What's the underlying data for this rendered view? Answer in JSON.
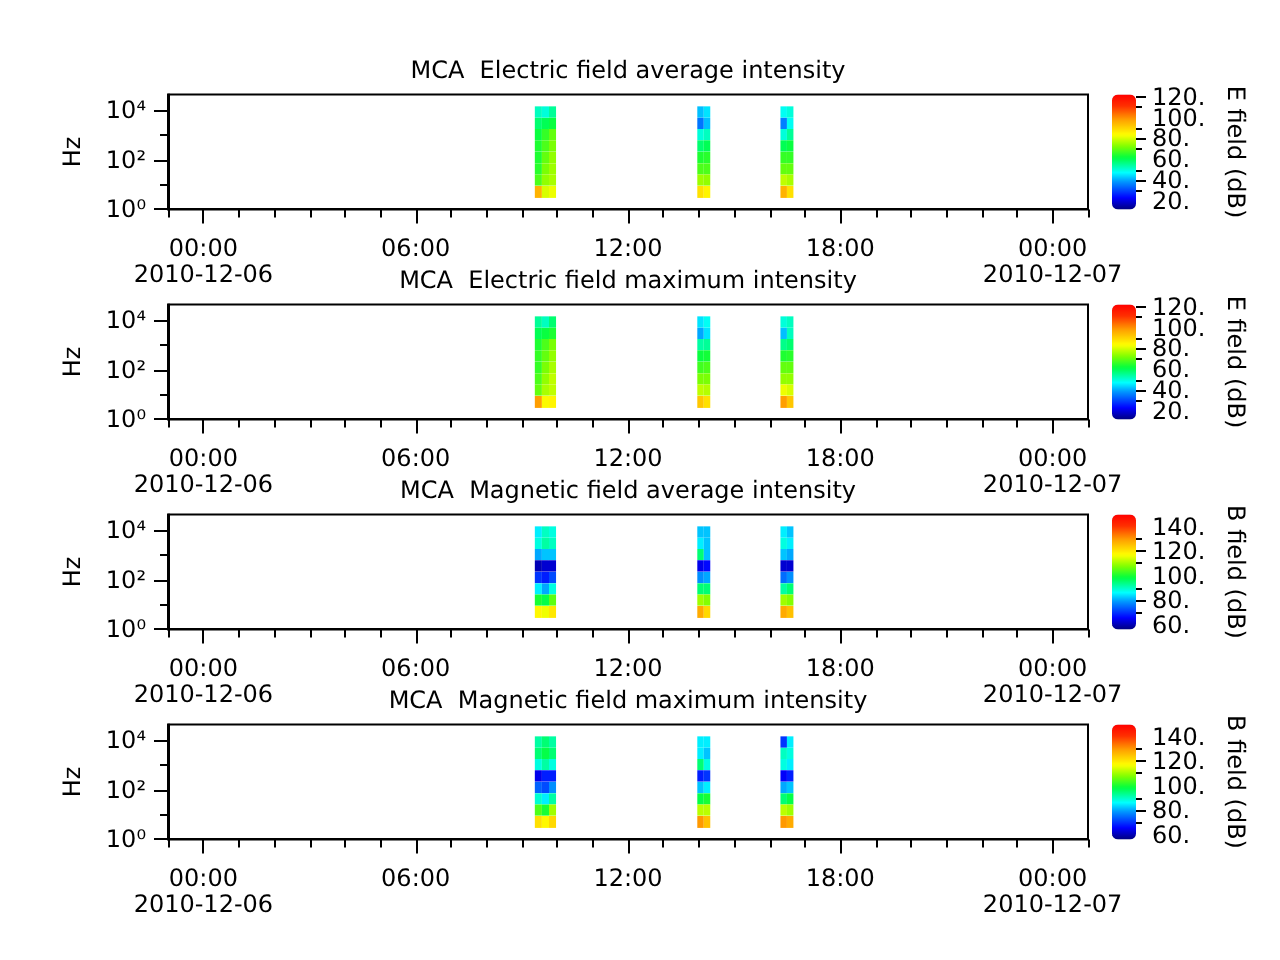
{
  "chart_data": [
    {
      "type": "scatter",
      "marker": "square",
      "title": "MCA  Electric field average intensity",
      "ylabel": "Hz",
      "clabel": "E field (dB)",
      "log": "y",
      "x": [
        "2010-12-06T09:28",
        "2010-12-06T09:28",
        "2010-12-06T09:28",
        "2010-12-06T09:28",
        "2010-12-06T09:28",
        "2010-12-06T09:28",
        "2010-12-06T09:28",
        "2010-12-06T09:28",
        "2010-12-06T09:40",
        "2010-12-06T09:40",
        "2010-12-06T09:40",
        "2010-12-06T09:40",
        "2010-12-06T09:40",
        "2010-12-06T09:40",
        "2010-12-06T09:40",
        "2010-12-06T09:40",
        "2010-12-06T09:52",
        "2010-12-06T09:52",
        "2010-12-06T09:52",
        "2010-12-06T09:52",
        "2010-12-06T09:52",
        "2010-12-06T09:52",
        "2010-12-06T09:52",
        "2010-12-06T09:52",
        "2010-12-06T14:03",
        "2010-12-06T14:03",
        "2010-12-06T14:03",
        "2010-12-06T14:03",
        "2010-12-06T14:03",
        "2010-12-06T14:03",
        "2010-12-06T14:03",
        "2010-12-06T14:03",
        "2010-12-06T14:14",
        "2010-12-06T14:14",
        "2010-12-06T14:14",
        "2010-12-06T14:14",
        "2010-12-06T14:14",
        "2010-12-06T14:14",
        "2010-12-06T14:14",
        "2010-12-06T14:14",
        "2010-12-06T16:24",
        "2010-12-06T16:24",
        "2010-12-06T16:24",
        "2010-12-06T16:24",
        "2010-12-06T16:24",
        "2010-12-06T16:24",
        "2010-12-06T16:24",
        "2010-12-06T16:24",
        "2010-12-06T16:35",
        "2010-12-06T16:35",
        "2010-12-06T16:35",
        "2010-12-06T16:35",
        "2010-12-06T16:35",
        "2010-12-06T16:35",
        "2010-12-06T16:35",
        "2010-12-06T16:35"
      ],
      "values": [
        8000,
        2800,
        1000,
        350,
        120,
        42,
        15,
        5,
        8000,
        2800,
        1000,
        350,
        120,
        42,
        15,
        5,
        8000,
        2800,
        1000,
        350,
        120,
        42,
        15,
        5,
        8000,
        2800,
        1000,
        350,
        120,
        42,
        15,
        5,
        8000,
        2800,
        1000,
        350,
        120,
        42,
        15,
        5,
        8000,
        2800,
        1000,
        350,
        120,
        42,
        15,
        5,
        8000,
        2800,
        1000,
        350,
        120,
        42,
        15,
        5
      ],
      "cvalues": [
        52,
        58,
        62,
        64,
        64,
        65,
        68,
        95,
        50,
        60,
        66,
        68,
        70,
        72,
        74,
        80,
        55,
        62,
        70,
        72,
        74,
        75,
        76,
        82,
        42,
        35,
        50,
        58,
        64,
        68,
        75,
        88,
        45,
        42,
        52,
        60,
        65,
        68,
        74,
        85,
        48,
        36,
        50,
        60,
        66,
        70,
        78,
        95,
        50,
        48,
        55,
        62,
        66,
        70,
        76,
        88
      ],
      "xlim": [
        "2010-12-05T23:00",
        "2010-12-07T01:00"
      ],
      "xticks": [
        {
          "value": "2010-12-05T23:00",
          "label": null
        },
        {
          "value": "2010-12-06T00:00",
          "label": "00:00\n2010-12-06"
        },
        {
          "value": "2010-12-06T01:00",
          "label": null
        },
        {
          "value": "2010-12-06T02:00",
          "label": null
        },
        {
          "value": "2010-12-06T03:00",
          "label": null
        },
        {
          "value": "2010-12-06T04:00",
          "label": null
        },
        {
          "value": "2010-12-06T05:00",
          "label": null
        },
        {
          "value": "2010-12-06T06:00",
          "label": "06:00"
        },
        {
          "value": "2010-12-06T07:00",
          "label": null
        },
        {
          "value": "2010-12-06T08:00",
          "label": null
        },
        {
          "value": "2010-12-06T09:00",
          "label": null
        },
        {
          "value": "2010-12-06T10:00",
          "label": null
        },
        {
          "value": "2010-12-06T11:00",
          "label": null
        },
        {
          "value": "2010-12-06T12:00",
          "label": "12:00"
        },
        {
          "value": "2010-12-06T13:00",
          "label": null
        },
        {
          "value": "2010-12-06T14:00",
          "label": null
        },
        {
          "value": "2010-12-06T15:00",
          "label": null
        },
        {
          "value": "2010-12-06T16:00",
          "label": null
        },
        {
          "value": "2010-12-06T17:00",
          "label": null
        },
        {
          "value": "2010-12-06T18:00",
          "label": "18:00"
        },
        {
          "value": "2010-12-06T19:00",
          "label": null
        },
        {
          "value": "2010-12-06T20:00",
          "label": null
        },
        {
          "value": "2010-12-06T21:00",
          "label": null
        },
        {
          "value": "2010-12-06T22:00",
          "label": null
        },
        {
          "value": "2010-12-06T23:00",
          "label": null
        },
        {
          "value": "2010-12-07T00:00",
          "label": "00:00\n2010-12-07"
        },
        {
          "value": "2010-12-07T01:00",
          "label": null
        }
      ],
      "ylim": [
        1,
        40000
      ],
      "yticks": [
        {
          "value": 1,
          "label": "10⁰"
        },
        {
          "value": 10,
          "label": null
        },
        {
          "value": 100,
          "label": "10²"
        },
        {
          "value": 1000,
          "label": null
        },
        {
          "value": 10000,
          "label": "10⁴"
        }
      ],
      "clim": [
        12,
        122
      ],
      "cticks": [
        {
          "value": 20,
          "label": "20."
        },
        {
          "value": 30,
          "label": null
        },
        {
          "value": 40,
          "label": "40."
        },
        {
          "value": 50,
          "label": null
        },
        {
          "value": 60,
          "label": "60."
        },
        {
          "value": 70,
          "label": null
        },
        {
          "value": 80,
          "label": "80."
        },
        {
          "value": 90,
          "label": null
        },
        {
          "value": 100,
          "label": "100."
        },
        {
          "value": 110,
          "label": null
        },
        {
          "value": 120,
          "label": "120."
        }
      ]
    },
    {
      "type": "scatter",
      "marker": "square",
      "title": "MCA  Electric field maximum intensity",
      "ylabel": "Hz",
      "clabel": "E field (dB)",
      "log": "y",
      "x": [
        "2010-12-06T09:28",
        "2010-12-06T09:28",
        "2010-12-06T09:28",
        "2010-12-06T09:28",
        "2010-12-06T09:28",
        "2010-12-06T09:28",
        "2010-12-06T09:28",
        "2010-12-06T09:28",
        "2010-12-06T09:40",
        "2010-12-06T09:40",
        "2010-12-06T09:40",
        "2010-12-06T09:40",
        "2010-12-06T09:40",
        "2010-12-06T09:40",
        "2010-12-06T09:40",
        "2010-12-06T09:40",
        "2010-12-06T09:52",
        "2010-12-06T09:52",
        "2010-12-06T09:52",
        "2010-12-06T09:52",
        "2010-12-06T09:52",
        "2010-12-06T09:52",
        "2010-12-06T09:52",
        "2010-12-06T09:52",
        "2010-12-06T14:03",
        "2010-12-06T14:03",
        "2010-12-06T14:03",
        "2010-12-06T14:03",
        "2010-12-06T14:03",
        "2010-12-06T14:03",
        "2010-12-06T14:03",
        "2010-12-06T14:03",
        "2010-12-06T14:14",
        "2010-12-06T14:14",
        "2010-12-06T14:14",
        "2010-12-06T14:14",
        "2010-12-06T14:14",
        "2010-12-06T14:14",
        "2010-12-06T14:14",
        "2010-12-06T14:14",
        "2010-12-06T16:24",
        "2010-12-06T16:24",
        "2010-12-06T16:24",
        "2010-12-06T16:24",
        "2010-12-06T16:24",
        "2010-12-06T16:24",
        "2010-12-06T16:24",
        "2010-12-06T16:24",
        "2010-12-06T16:35",
        "2010-12-06T16:35",
        "2010-12-06T16:35",
        "2010-12-06T16:35",
        "2010-12-06T16:35",
        "2010-12-06T16:35",
        "2010-12-06T16:35",
        "2010-12-06T16:35"
      ],
      "values": [
        8000,
        2800,
        1000,
        350,
        120,
        42,
        15,
        5,
        8000,
        2800,
        1000,
        350,
        120,
        42,
        15,
        5,
        8000,
        2800,
        1000,
        350,
        120,
        42,
        15,
        5,
        8000,
        2800,
        1000,
        350,
        120,
        42,
        15,
        5,
        8000,
        2800,
        1000,
        350,
        120,
        42,
        15,
        5,
        8000,
        2800,
        1000,
        350,
        120,
        42,
        15,
        5,
        8000,
        2800,
        1000,
        350,
        120,
        42,
        15,
        5
      ],
      "cvalues": [
        55,
        60,
        64,
        66,
        66,
        68,
        70,
        98,
        52,
        62,
        68,
        70,
        72,
        74,
        76,
        84,
        58,
        64,
        72,
        74,
        76,
        78,
        78,
        85,
        45,
        40,
        54,
        62,
        67,
        72,
        78,
        92,
        48,
        45,
        55,
        63,
        68,
        72,
        77,
        88,
        50,
        42,
        56,
        64,
        70,
        74,
        82,
        98,
        52,
        52,
        58,
        65,
        70,
        74,
        80,
        92
      ],
      "xlim": [
        "2010-12-05T23:00",
        "2010-12-07T01:00"
      ],
      "xticks": [
        {
          "value": "2010-12-05T23:00",
          "label": null
        },
        {
          "value": "2010-12-06T00:00",
          "label": "00:00\n2010-12-06"
        },
        {
          "value": "2010-12-06T01:00",
          "label": null
        },
        {
          "value": "2010-12-06T02:00",
          "label": null
        },
        {
          "value": "2010-12-06T03:00",
          "label": null
        },
        {
          "value": "2010-12-06T04:00",
          "label": null
        },
        {
          "value": "2010-12-06T05:00",
          "label": null
        },
        {
          "value": "2010-12-06T06:00",
          "label": "06:00"
        },
        {
          "value": "2010-12-06T07:00",
          "label": null
        },
        {
          "value": "2010-12-06T08:00",
          "label": null
        },
        {
          "value": "2010-12-06T09:00",
          "label": null
        },
        {
          "value": "2010-12-06T10:00",
          "label": null
        },
        {
          "value": "2010-12-06T11:00",
          "label": null
        },
        {
          "value": "2010-12-06T12:00",
          "label": "12:00"
        },
        {
          "value": "2010-12-06T13:00",
          "label": null
        },
        {
          "value": "2010-12-06T14:00",
          "label": null
        },
        {
          "value": "2010-12-06T15:00",
          "label": null
        },
        {
          "value": "2010-12-06T16:00",
          "label": null
        },
        {
          "value": "2010-12-06T17:00",
          "label": null
        },
        {
          "value": "2010-12-06T18:00",
          "label": "18:00"
        },
        {
          "value": "2010-12-06T19:00",
          "label": null
        },
        {
          "value": "2010-12-06T20:00",
          "label": null
        },
        {
          "value": "2010-12-06T21:00",
          "label": null
        },
        {
          "value": "2010-12-06T22:00",
          "label": null
        },
        {
          "value": "2010-12-06T23:00",
          "label": null
        },
        {
          "value": "2010-12-07T00:00",
          "label": "00:00\n2010-12-07"
        },
        {
          "value": "2010-12-07T01:00",
          "label": null
        }
      ],
      "ylim": [
        1,
        40000
      ],
      "yticks": [
        {
          "value": 1,
          "label": "10⁰"
        },
        {
          "value": 10,
          "label": null
        },
        {
          "value": 100,
          "label": "10²"
        },
        {
          "value": 1000,
          "label": null
        },
        {
          "value": 10000,
          "label": "10⁴"
        }
      ],
      "clim": [
        12,
        122
      ],
      "cticks": [
        {
          "value": 20,
          "label": "20."
        },
        {
          "value": 30,
          "label": null
        },
        {
          "value": 40,
          "label": "40."
        },
        {
          "value": 50,
          "label": null
        },
        {
          "value": 60,
          "label": "60."
        },
        {
          "value": 70,
          "label": null
        },
        {
          "value": 80,
          "label": "80."
        },
        {
          "value": 90,
          "label": null
        },
        {
          "value": 100,
          "label": "100."
        },
        {
          "value": 110,
          "label": null
        },
        {
          "value": 120,
          "label": "120."
        }
      ]
    },
    {
      "type": "scatter",
      "marker": "square",
      "title": "MCA  Magnetic field average intensity",
      "ylabel": "Hz",
      "clabel": "B field (dB)",
      "log": "y",
      "x": [
        "2010-12-06T09:28",
        "2010-12-06T09:28",
        "2010-12-06T09:28",
        "2010-12-06T09:28",
        "2010-12-06T09:28",
        "2010-12-06T09:28",
        "2010-12-06T09:28",
        "2010-12-06T09:28",
        "2010-12-06T09:40",
        "2010-12-06T09:40",
        "2010-12-06T09:40",
        "2010-12-06T09:40",
        "2010-12-06T09:40",
        "2010-12-06T09:40",
        "2010-12-06T09:40",
        "2010-12-06T09:40",
        "2010-12-06T09:52",
        "2010-12-06T09:52",
        "2010-12-06T09:52",
        "2010-12-06T09:52",
        "2010-12-06T09:52",
        "2010-12-06T09:52",
        "2010-12-06T09:52",
        "2010-12-06T09:52",
        "2010-12-06T14:03",
        "2010-12-06T14:03",
        "2010-12-06T14:03",
        "2010-12-06T14:03",
        "2010-12-06T14:03",
        "2010-12-06T14:03",
        "2010-12-06T14:03",
        "2010-12-06T14:03",
        "2010-12-06T14:14",
        "2010-12-06T14:14",
        "2010-12-06T14:14",
        "2010-12-06T14:14",
        "2010-12-06T14:14",
        "2010-12-06T14:14",
        "2010-12-06T14:14",
        "2010-12-06T14:14",
        "2010-12-06T16:24",
        "2010-12-06T16:24",
        "2010-12-06T16:24",
        "2010-12-06T16:24",
        "2010-12-06T16:24",
        "2010-12-06T16:24",
        "2010-12-06T16:24",
        "2010-12-06T16:24",
        "2010-12-06T16:35",
        "2010-12-06T16:35",
        "2010-12-06T16:35",
        "2010-12-06T16:35",
        "2010-12-06T16:35",
        "2010-12-06T16:35",
        "2010-12-06T16:35",
        "2010-12-06T16:35"
      ],
      "values": [
        8000,
        2800,
        1000,
        350,
        120,
        42,
        15,
        5,
        8000,
        2800,
        1000,
        350,
        120,
        42,
        15,
        5,
        8000,
        2800,
        1000,
        350,
        120,
        42,
        15,
        5,
        8000,
        2800,
        1000,
        350,
        120,
        42,
        15,
        5,
        8000,
        2800,
        1000,
        350,
        120,
        42,
        15,
        5,
        8000,
        2800,
        1000,
        350,
        120,
        42,
        15,
        5,
        8000,
        2800,
        1000,
        350,
        120,
        42,
        15,
        5
      ],
      "cvalues": [
        85,
        88,
        80,
        60,
        70,
        85,
        100,
        118,
        90,
        92,
        82,
        62,
        68,
        80,
        98,
        116,
        88,
        90,
        82,
        62,
        72,
        88,
        105,
        120,
        82,
        85,
        95,
        64,
        78,
        95,
        110,
        128,
        82,
        82,
        82,
        66,
        80,
        95,
        108,
        122,
        85,
        88,
        82,
        62,
        75,
        92,
        110,
        128,
        82,
        85,
        80,
        62,
        78,
        95,
        108,
        125
      ],
      "xlim": [
        "2010-12-05T23:00",
        "2010-12-07T01:00"
      ],
      "xticks": [
        {
          "value": "2010-12-05T23:00",
          "label": null
        },
        {
          "value": "2010-12-06T00:00",
          "label": "00:00\n2010-12-06"
        },
        {
          "value": "2010-12-06T01:00",
          "label": null
        },
        {
          "value": "2010-12-06T02:00",
          "label": null
        },
        {
          "value": "2010-12-06T03:00",
          "label": null
        },
        {
          "value": "2010-12-06T04:00",
          "label": null
        },
        {
          "value": "2010-12-06T05:00",
          "label": null
        },
        {
          "value": "2010-12-06T06:00",
          "label": "06:00"
        },
        {
          "value": "2010-12-06T07:00",
          "label": null
        },
        {
          "value": "2010-12-06T08:00",
          "label": null
        },
        {
          "value": "2010-12-06T09:00",
          "label": null
        },
        {
          "value": "2010-12-06T10:00",
          "label": null
        },
        {
          "value": "2010-12-06T11:00",
          "label": null
        },
        {
          "value": "2010-12-06T12:00",
          "label": "12:00"
        },
        {
          "value": "2010-12-06T13:00",
          "label": null
        },
        {
          "value": "2010-12-06T14:00",
          "label": null
        },
        {
          "value": "2010-12-06T15:00",
          "label": null
        },
        {
          "value": "2010-12-06T16:00",
          "label": null
        },
        {
          "value": "2010-12-06T17:00",
          "label": null
        },
        {
          "value": "2010-12-06T18:00",
          "label": "18:00"
        },
        {
          "value": "2010-12-06T19:00",
          "label": null
        },
        {
          "value": "2010-12-06T20:00",
          "label": null
        },
        {
          "value": "2010-12-06T21:00",
          "label": null
        },
        {
          "value": "2010-12-06T22:00",
          "label": null
        },
        {
          "value": "2010-12-06T23:00",
          "label": null
        },
        {
          "value": "2010-12-07T00:00",
          "label": "00:00\n2010-12-07"
        },
        {
          "value": "2010-12-07T01:00",
          "label": null
        }
      ],
      "ylim": [
        1,
        40000
      ],
      "yticks": [
        {
          "value": 1,
          "label": "10⁰"
        },
        {
          "value": 10,
          "label": null
        },
        {
          "value": 100,
          "label": "10²"
        },
        {
          "value": 1000,
          "label": null
        },
        {
          "value": 10000,
          "label": "10⁴"
        }
      ],
      "clim": [
        56,
        150
      ],
      "cticks": [
        {
          "value": 60,
          "label": "60."
        },
        {
          "value": 70,
          "label": null
        },
        {
          "value": 80,
          "label": "80."
        },
        {
          "value": 90,
          "label": null
        },
        {
          "value": 100,
          "label": "100."
        },
        {
          "value": 110,
          "label": null
        },
        {
          "value": 120,
          "label": "120."
        },
        {
          "value": 130,
          "label": null
        },
        {
          "value": 140,
          "label": "140."
        }
      ]
    },
    {
      "type": "scatter",
      "marker": "square",
      "title": "MCA  Magnetic field maximum intensity",
      "ylabel": "Hz",
      "clabel": "B field (dB)",
      "log": "y",
      "x": [
        "2010-12-06T09:28",
        "2010-12-06T09:28",
        "2010-12-06T09:28",
        "2010-12-06T09:28",
        "2010-12-06T09:28",
        "2010-12-06T09:28",
        "2010-12-06T09:28",
        "2010-12-06T09:28",
        "2010-12-06T09:40",
        "2010-12-06T09:40",
        "2010-12-06T09:40",
        "2010-12-06T09:40",
        "2010-12-06T09:40",
        "2010-12-06T09:40",
        "2010-12-06T09:40",
        "2010-12-06T09:40",
        "2010-12-06T09:52",
        "2010-12-06T09:52",
        "2010-12-06T09:52",
        "2010-12-06T09:52",
        "2010-12-06T09:52",
        "2010-12-06T09:52",
        "2010-12-06T09:52",
        "2010-12-06T09:52",
        "2010-12-06T14:03",
        "2010-12-06T14:03",
        "2010-12-06T14:03",
        "2010-12-06T14:03",
        "2010-12-06T14:03",
        "2010-12-06T14:03",
        "2010-12-06T14:03",
        "2010-12-06T14:03",
        "2010-12-06T14:14",
        "2010-12-06T14:14",
        "2010-12-06T14:14",
        "2010-12-06T14:14",
        "2010-12-06T14:14",
        "2010-12-06T14:14",
        "2010-12-06T14:14",
        "2010-12-06T14:14",
        "2010-12-06T16:24",
        "2010-12-06T16:24",
        "2010-12-06T16:24",
        "2010-12-06T16:24",
        "2010-12-06T16:24",
        "2010-12-06T16:24",
        "2010-12-06T16:24",
        "2010-12-06T16:24",
        "2010-12-06T16:35",
        "2010-12-06T16:35",
        "2010-12-06T16:35",
        "2010-12-06T16:35",
        "2010-12-06T16:35",
        "2010-12-06T16:35",
        "2010-12-06T16:35",
        "2010-12-06T16:35"
      ],
      "values": [
        8000,
        2800,
        1000,
        350,
        120,
        42,
        15,
        5,
        8000,
        2800,
        1000,
        350,
        120,
        42,
        15,
        5,
        8000,
        2800,
        1000,
        350,
        120,
        42,
        15,
        5,
        8000,
        2800,
        1000,
        350,
        120,
        42,
        15,
        5,
        8000,
        2800,
        1000,
        350,
        120,
        42,
        15,
        5,
        8000,
        2800,
        1000,
        350,
        120,
        42,
        15,
        5,
        8000,
        2800,
        1000,
        350,
        120,
        42,
        15,
        5
      ],
      "cvalues": [
        92,
        95,
        88,
        64,
        74,
        89,
        104,
        121,
        95,
        98,
        92,
        68,
        72,
        85,
        100,
        118,
        92,
        95,
        88,
        68,
        78,
        92,
        110,
        122,
        85,
        85,
        95,
        68,
        82,
        98,
        112,
        130,
        85,
        82,
        88,
        70,
        85,
        100,
        112,
        125,
        70,
        90,
        88,
        65,
        80,
        95,
        112,
        130,
        85,
        88,
        85,
        68,
        82,
        98,
        110,
        128
      ],
      "xlim": [
        "2010-12-05T23:00",
        "2010-12-07T01:00"
      ],
      "xticks": [
        {
          "value": "2010-12-05T23:00",
          "label": null
        },
        {
          "value": "2010-12-06T00:00",
          "label": "00:00\n2010-12-06"
        },
        {
          "value": "2010-12-06T01:00",
          "label": null
        },
        {
          "value": "2010-12-06T02:00",
          "label": null
        },
        {
          "value": "2010-12-06T03:00",
          "label": null
        },
        {
          "value": "2010-12-06T04:00",
          "label": null
        },
        {
          "value": "2010-12-06T05:00",
          "label": null
        },
        {
          "value": "2010-12-06T06:00",
          "label": "06:00"
        },
        {
          "value": "2010-12-06T07:00",
          "label": null
        },
        {
          "value": "2010-12-06T08:00",
          "label": null
        },
        {
          "value": "2010-12-06T09:00",
          "label": null
        },
        {
          "value": "2010-12-06T10:00",
          "label": null
        },
        {
          "value": "2010-12-06T11:00",
          "label": null
        },
        {
          "value": "2010-12-06T12:00",
          "label": "12:00"
        },
        {
          "value": "2010-12-06T13:00",
          "label": null
        },
        {
          "value": "2010-12-06T14:00",
          "label": null
        },
        {
          "value": "2010-12-06T15:00",
          "label": null
        },
        {
          "value": "2010-12-06T16:00",
          "label": null
        },
        {
          "value": "2010-12-06T17:00",
          "label": null
        },
        {
          "value": "2010-12-06T18:00",
          "label": "18:00"
        },
        {
          "value": "2010-12-06T19:00",
          "label": null
        },
        {
          "value": "2010-12-06T20:00",
          "label": null
        },
        {
          "value": "2010-12-06T21:00",
          "label": null
        },
        {
          "value": "2010-12-06T22:00",
          "label": null
        },
        {
          "value": "2010-12-06T23:00",
          "label": null
        },
        {
          "value": "2010-12-07T00:00",
          "label": "00:00\n2010-12-07"
        },
        {
          "value": "2010-12-07T01:00",
          "label": null
        }
      ],
      "ylim": [
        1,
        40000
      ],
      "yticks": [
        {
          "value": 1,
          "label": "10⁰"
        },
        {
          "value": 10,
          "label": null
        },
        {
          "value": 100,
          "label": "10²"
        },
        {
          "value": 1000,
          "label": null
        },
        {
          "value": 10000,
          "label": "10⁴"
        }
      ],
      "clim": [
        56,
        150
      ],
      "cticks": [
        {
          "value": 60,
          "label": "60."
        },
        {
          "value": 70,
          "label": null
        },
        {
          "value": 80,
          "label": "80."
        },
        {
          "value": 90,
          "label": null
        },
        {
          "value": 100,
          "label": "100."
        },
        {
          "value": 110,
          "label": null
        },
        {
          "value": 120,
          "label": "120."
        },
        {
          "value": 130,
          "label": null
        },
        {
          "value": 140,
          "label": "140."
        }
      ]
    }
  ]
}
